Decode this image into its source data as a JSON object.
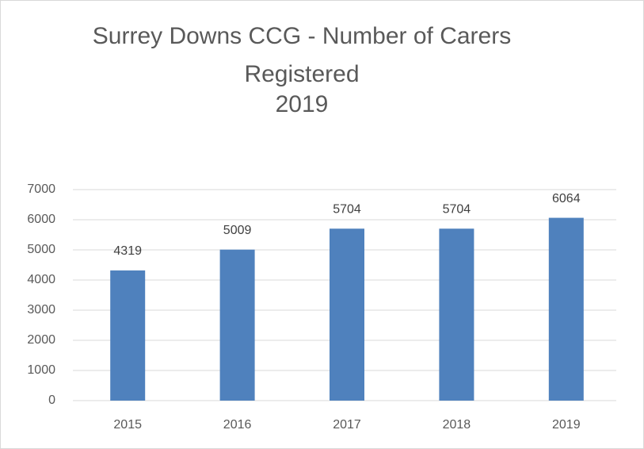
{
  "chart_data": {
    "type": "bar",
    "title": [
      "Surrey Downs CCG - Number of Carers",
      "Registered",
      "2019"
    ],
    "categories": [
      "2015",
      "2016",
      "2017",
      "2018",
      "2019"
    ],
    "values": [
      4319,
      5009,
      5704,
      5704,
      6064
    ],
    "color": "#4f81bd",
    "ylim": [
      0,
      7000
    ],
    "yticks": [
      0,
      1000,
      2000,
      3000,
      4000,
      5000,
      6000,
      7000
    ],
    "grid": true
  }
}
